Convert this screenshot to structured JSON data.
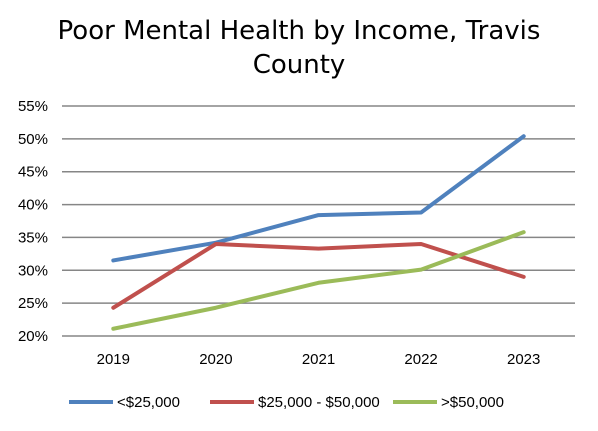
{
  "chart_data": {
    "type": "line",
    "title_line1": "Poor Mental Health by Income, Travis",
    "title_line2": "County",
    "categories": [
      "2019",
      "2020",
      "2021",
      "2022",
      "2023"
    ],
    "y_ticks": [
      "20%",
      "25%",
      "30%",
      "35%",
      "40%",
      "45%",
      "50%",
      "55%"
    ],
    "ylim": [
      20,
      55
    ],
    "ylabel": "",
    "xlabel": "",
    "grid": true,
    "legend_position": "bottom",
    "series": [
      {
        "name": "<$25,000",
        "color": "#4f81bd",
        "values": [
          31.5,
          34.2,
          38.4,
          38.8,
          50.4
        ]
      },
      {
        "name": "$25,000 - $50,000",
        "color": "#c0504d",
        "values": [
          24.3,
          34.0,
          33.3,
          34.0,
          29.0
        ]
      },
      {
        "name": ">$50,000",
        "color": "#9bbb59",
        "values": [
          21.1,
          24.3,
          28.1,
          30.1,
          35.8
        ]
      }
    ]
  }
}
